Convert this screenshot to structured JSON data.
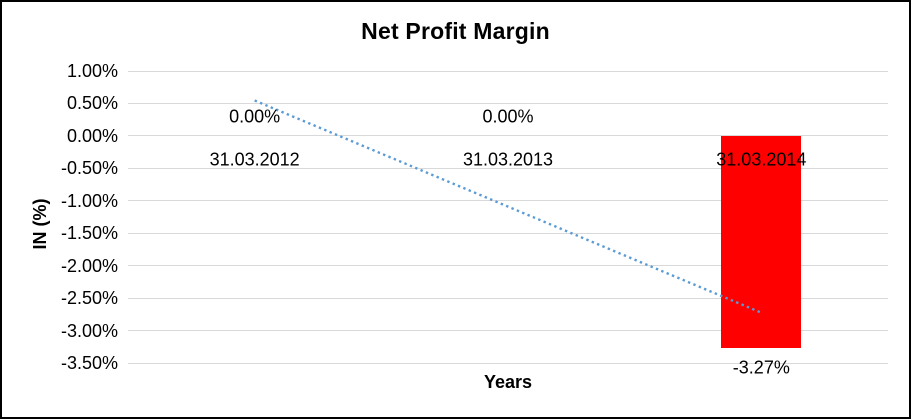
{
  "chart_data": {
    "type": "bar",
    "title": "Net Profit Margin",
    "xlabel": "Years",
    "ylabel": "IN (%)",
    "categories": [
      "31.03.2012",
      "31.03.2013",
      "31.03.2014"
    ],
    "series": [
      {
        "name": "Net Profit Margin",
        "values": [
          0.0,
          0.0,
          -3.27
        ]
      }
    ],
    "data_labels": [
      "0.00%",
      "0.00%",
      "-3.27%"
    ],
    "y_ticks": [
      "1.00%",
      "0.50%",
      "0.00%",
      "-0.50%",
      "-1.00%",
      "-1.50%",
      "-2.00%",
      "-2.50%",
      "-3.00%",
      "-3.50%"
    ],
    "ylim": [
      -3.5,
      1.0
    ],
    "y_tick_step": 0.5,
    "grid": true,
    "legend": "none",
    "bar_color": "#FF0000",
    "gridline_color": "#D9D9D9",
    "trendline": {
      "type": "linear",
      "style": "dotted",
      "color": "#5B9BD5",
      "start_value": 0.545,
      "end_value": -2.725
    }
  }
}
